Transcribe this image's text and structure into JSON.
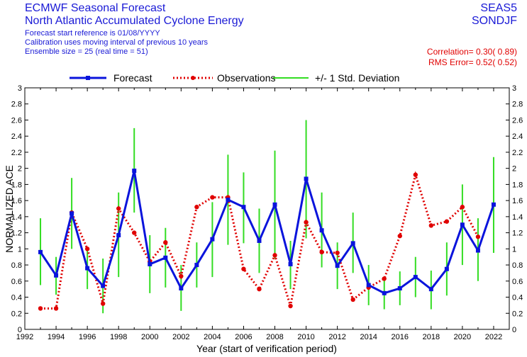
{
  "header": {
    "title_line1": "ECMWF Seasonal Forecast",
    "title_line2": "North Atlantic Accumulated Cyclone Energy",
    "info_line1": "Forecast start reference is 01/08/YYYY",
    "info_line2": "Calibration uses moving interval of previous 10 years",
    "info_line3": "Ensemble size =  25    (real time = 51)",
    "model": "SEAS5",
    "season": "SONDJF",
    "correlation": "Correlation= 0.30( 0.89)",
    "rms_error": "RMS Error= 0.52( 0.52)"
  },
  "colors": {
    "forecast": "#0a14dc",
    "observations": "#e00000",
    "std": "#33dd22",
    "title": "#1a1ad6"
  },
  "chart_data": {
    "type": "line",
    "xlabel": "Year (start of verification period)",
    "ylabel": "NORMALIZED ACE",
    "xlim": [
      1992,
      2023
    ],
    "ylim": [
      0,
      3
    ],
    "x_ticks": [
      1992,
      1994,
      1996,
      1998,
      2000,
      2002,
      2004,
      2006,
      2008,
      2010,
      2012,
      2014,
      2016,
      2018,
      2020,
      2022
    ],
    "y_ticks": [
      "0",
      "0.2",
      "0.4",
      "0.6",
      "0.8",
      "1",
      "1.2",
      "1.4",
      "1.6",
      "1.8",
      "2",
      "2.2",
      "2.4",
      "2.6",
      "2.8",
      "3"
    ],
    "legend": [
      "Forecast",
      "Observations",
      "+/- 1 Std. Deviation"
    ],
    "legend_position": "top",
    "x": [
      1993,
      1994,
      1995,
      1996,
      1997,
      1998,
      1999,
      2000,
      2001,
      2002,
      2003,
      2004,
      2005,
      2006,
      2007,
      2008,
      2009,
      2010,
      2011,
      2012,
      2013,
      2014,
      2015,
      2016,
      2017,
      2018,
      2019,
      2020,
      2021,
      2022
    ],
    "series": [
      {
        "name": "Forecast",
        "values": [
          0.96,
          0.67,
          1.44,
          0.76,
          0.54,
          1.17,
          1.97,
          0.81,
          0.89,
          0.51,
          0.8,
          1.12,
          1.61,
          1.52,
          1.1,
          1.55,
          0.81,
          1.87,
          1.23,
          0.79,
          1.07,
          0.55,
          0.45,
          0.51,
          0.65,
          0.5,
          0.75,
          1.3,
          0.98,
          1.55
        ]
      },
      {
        "name": "Observations",
        "values": [
          0.26,
          0.26,
          1.45,
          1.0,
          0.32,
          1.5,
          1.2,
          0.84,
          1.08,
          0.66,
          1.52,
          1.64,
          1.64,
          0.75,
          0.5,
          0.92,
          0.29,
          1.33,
          0.96,
          0.95,
          0.37,
          0.52,
          0.63,
          1.16,
          1.92,
          1.29,
          1.34,
          1.52,
          1.15,
          null
        ]
      }
    ],
    "std_lower": [
      0.55,
      0.43,
      1.0,
      0.5,
      0.2,
      0.65,
      1.45,
      0.45,
      0.52,
      0.23,
      0.52,
      0.65,
      1.05,
      1.07,
      0.7,
      0.88,
      0.5,
      1.13,
      0.77,
      0.5,
      0.7,
      0.3,
      0.25,
      0.3,
      0.4,
      0.25,
      0.42,
      0.8,
      0.6,
      0.95
    ],
    "std_upper": [
      1.38,
      0.9,
      1.88,
      1.02,
      0.88,
      1.7,
      2.5,
      1.17,
      1.26,
      0.8,
      1.08,
      1.58,
      2.17,
      1.95,
      1.5,
      2.22,
      1.1,
      2.6,
      1.7,
      1.08,
      1.45,
      0.8,
      0.65,
      0.72,
      0.9,
      0.73,
      1.08,
      1.8,
      1.38,
      2.14
    ]
  }
}
